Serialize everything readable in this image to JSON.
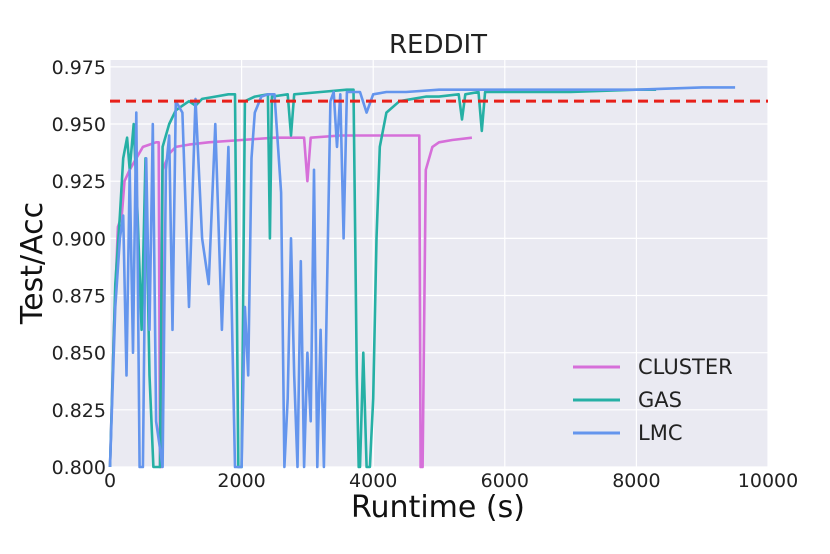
{
  "chart_data": {
    "type": "line",
    "title": "REDDIT",
    "xlabel": "Runtime (s)",
    "ylabel": "Test/Acc",
    "xlim": [
      0,
      10000
    ],
    "ylim": [
      0.8,
      0.978
    ],
    "x_ticks": [
      0,
      2000,
      4000,
      6000,
      8000,
      10000
    ],
    "x_tick_labels": [
      "0",
      "2000",
      "4000",
      "6000",
      "8000",
      "10000"
    ],
    "y_ticks": [
      0.8,
      0.825,
      0.85,
      0.875,
      0.9,
      0.925,
      0.95,
      0.975
    ],
    "y_tick_labels": [
      "0.800",
      "0.825",
      "0.850",
      "0.875",
      "0.900",
      "0.925",
      "0.950",
      "0.975"
    ],
    "grid": true,
    "legend_position": "bottom-right",
    "reference_line": {
      "y": 0.96,
      "style": "dashed",
      "color": "#e8201a"
    },
    "series": [
      {
        "name": "CLUSTER",
        "color": "#d66fd9",
        "points": [
          [
            0,
            0.8
          ],
          [
            60,
            0.86
          ],
          [
            120,
            0.905
          ],
          [
            180,
            0.91
          ],
          [
            220,
            0.925
          ],
          [
            300,
            0.93
          ],
          [
            400,
            0.935
          ],
          [
            500,
            0.94
          ],
          [
            600,
            0.941
          ],
          [
            700,
            0.942
          ],
          [
            740,
            0.942
          ],
          [
            760,
            0.8
          ],
          [
            780,
            0.8
          ],
          [
            800,
            0.93
          ],
          [
            900,
            0.937
          ],
          [
            1000,
            0.94
          ],
          [
            1200,
            0.941
          ],
          [
            1500,
            0.942
          ],
          [
            2000,
            0.943
          ],
          [
            2500,
            0.944
          ],
          [
            2950,
            0.944
          ],
          [
            3000,
            0.925
          ],
          [
            3050,
            0.944
          ],
          [
            3500,
            0.945
          ],
          [
            4000,
            0.945
          ],
          [
            4500,
            0.945
          ],
          [
            4700,
            0.945
          ],
          [
            4720,
            0.8
          ],
          [
            4750,
            0.8
          ],
          [
            4800,
            0.93
          ],
          [
            4900,
            0.94
          ],
          [
            5000,
            0.942
          ],
          [
            5200,
            0.943
          ],
          [
            5500,
            0.944
          ]
        ]
      },
      {
        "name": "GAS",
        "color": "#26b0a5",
        "points": [
          [
            0,
            0.8
          ],
          [
            80,
            0.88
          ],
          [
            150,
            0.91
          ],
          [
            200,
            0.935
          ],
          [
            260,
            0.944
          ],
          [
            300,
            0.93
          ],
          [
            360,
            0.95
          ],
          [
            420,
            0.91
          ],
          [
            480,
            0.86
          ],
          [
            540,
            0.935
          ],
          [
            600,
            0.84
          ],
          [
            660,
            0.8
          ],
          [
            720,
            0.8
          ],
          [
            760,
            0.8
          ],
          [
            800,
            0.94
          ],
          [
            900,
            0.95
          ],
          [
            1000,
            0.956
          ],
          [
            1100,
            0.958
          ],
          [
            1200,
            0.96
          ],
          [
            1300,
            0.958
          ],
          [
            1400,
            0.961
          ],
          [
            1600,
            0.962
          ],
          [
            1800,
            0.963
          ],
          [
            1900,
            0.963
          ],
          [
            1950,
            0.8
          ],
          [
            2000,
            0.8
          ],
          [
            2050,
            0.96
          ],
          [
            2200,
            0.962
          ],
          [
            2400,
            0.963
          ],
          [
            2430,
            0.9
          ],
          [
            2460,
            0.962
          ],
          [
            2700,
            0.963
          ],
          [
            2750,
            0.945
          ],
          [
            2800,
            0.963
          ],
          [
            3200,
            0.964
          ],
          [
            3600,
            0.965
          ],
          [
            3700,
            0.965
          ],
          [
            3750,
            0.84
          ],
          [
            3780,
            0.8
          ],
          [
            3800,
            0.8
          ],
          [
            3850,
            0.85
          ],
          [
            3900,
            0.8
          ],
          [
            3950,
            0.8
          ],
          [
            4000,
            0.83
          ],
          [
            4050,
            0.9
          ],
          [
            4100,
            0.94
          ],
          [
            4200,
            0.955
          ],
          [
            4400,
            0.96
          ],
          [
            4800,
            0.962
          ],
          [
            5000,
            0.962
          ],
          [
            5300,
            0.963
          ],
          [
            5350,
            0.952
          ],
          [
            5400,
            0.963
          ],
          [
            5600,
            0.964
          ],
          [
            5650,
            0.947
          ],
          [
            5700,
            0.964
          ],
          [
            6000,
            0.964
          ],
          [
            7000,
            0.964
          ],
          [
            8000,
            0.965
          ],
          [
            8300,
            0.965
          ]
        ]
      },
      {
        "name": "LMC",
        "color": "#6495ed",
        "points": [
          [
            0,
            0.8
          ],
          [
            80,
            0.87
          ],
          [
            150,
            0.9
          ],
          [
            200,
            0.91
          ],
          [
            250,
            0.84
          ],
          [
            300,
            0.93
          ],
          [
            350,
            0.85
          ],
          [
            400,
            0.955
          ],
          [
            450,
            0.8
          ],
          [
            500,
            0.8
          ],
          [
            550,
            0.935
          ],
          [
            600,
            0.86
          ],
          [
            650,
            0.95
          ],
          [
            700,
            0.82
          ],
          [
            800,
            0.8
          ],
          [
            850,
            0.93
          ],
          [
            900,
            0.945
          ],
          [
            950,
            0.86
          ],
          [
            1000,
            0.96
          ],
          [
            1100,
            0.955
          ],
          [
            1200,
            0.87
          ],
          [
            1300,
            0.961
          ],
          [
            1400,
            0.9
          ],
          [
            1500,
            0.88
          ],
          [
            1600,
            0.95
          ],
          [
            1700,
            0.86
          ],
          [
            1800,
            0.94
          ],
          [
            1900,
            0.8
          ],
          [
            2000,
            0.8
          ],
          [
            2050,
            0.87
          ],
          [
            2100,
            0.84
          ],
          [
            2150,
            0.935
          ],
          [
            2200,
            0.955
          ],
          [
            2300,
            0.962
          ],
          [
            2400,
            0.963
          ],
          [
            2500,
            0.963
          ],
          [
            2600,
            0.92
          ],
          [
            2650,
            0.8
          ],
          [
            2700,
            0.83
          ],
          [
            2750,
            0.9
          ],
          [
            2800,
            0.84
          ],
          [
            2850,
            0.8
          ],
          [
            2900,
            0.89
          ],
          [
            2950,
            0.8
          ],
          [
            3000,
            0.85
          ],
          [
            3050,
            0.82
          ],
          [
            3100,
            0.93
          ],
          [
            3150,
            0.8
          ],
          [
            3200,
            0.86
          ],
          [
            3250,
            0.8
          ],
          [
            3300,
            0.88
          ],
          [
            3350,
            0.96
          ],
          [
            3400,
            0.964
          ],
          [
            3450,
            0.94
          ],
          [
            3500,
            0.963
          ],
          [
            3550,
            0.9
          ],
          [
            3600,
            0.964
          ],
          [
            3800,
            0.964
          ],
          [
            3900,
            0.955
          ],
          [
            4000,
            0.963
          ],
          [
            4200,
            0.964
          ],
          [
            4500,
            0.964
          ],
          [
            5000,
            0.965
          ],
          [
            5500,
            0.965
          ],
          [
            6000,
            0.965
          ],
          [
            7000,
            0.965
          ],
          [
            8000,
            0.965
          ],
          [
            9000,
            0.966
          ],
          [
            9500,
            0.966
          ]
        ]
      }
    ]
  }
}
